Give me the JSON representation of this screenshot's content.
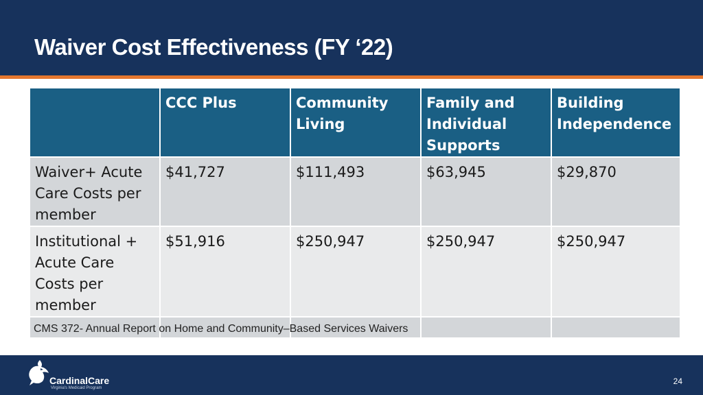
{
  "slide": {
    "title": "Waiver Cost Effectiveness (FY ‘22)",
    "page_number": "24"
  },
  "table": {
    "headers": [
      "",
      "CCC Plus",
      "Community Living",
      "Family and Individual Supports",
      "Building Independence"
    ],
    "rows": [
      {
        "label": "Waiver+ Acute Care Costs per member",
        "values": [
          "$41,727",
          "$111,493",
          "$63,945",
          "$29,870"
        ]
      },
      {
        "label": "Institutional + Acute Care Costs per member",
        "values": [
          "$51,916",
          "$250,947",
          "$250,947",
          "$250,947"
        ]
      }
    ],
    "source_note": "CMS 372- Annual Report on Home and Community–Based Services Waivers"
  },
  "logo": {
    "name": "CardinalCare",
    "tagline": "Virginia's Medicaid Program",
    "icon": "cardinal-bird-icon"
  },
  "colors": {
    "header_bg": "#17325c",
    "accent": "#e5772e",
    "table_header": "#1a5f84",
    "row_dark": "#d3d6d9",
    "row_light": "#e9eaeb"
  }
}
